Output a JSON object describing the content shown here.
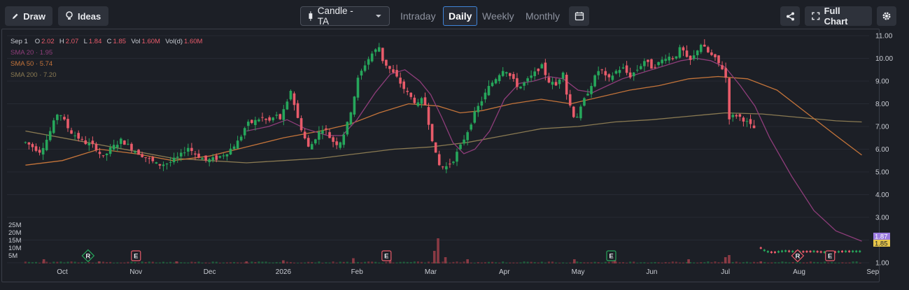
{
  "toolbar": {
    "draw_label": "Draw",
    "ideas_label": "Ideas",
    "chart_type_label": "Candle - TA",
    "tabs": [
      "Intraday",
      "Daily",
      "Weekly",
      "Monthly"
    ],
    "active_tab": "Daily",
    "full_chart_label": "Full Chart"
  },
  "legend": {
    "date": "Sep 1",
    "o_label": "O",
    "o_value": "2.02",
    "h_label": "H",
    "h_value": "2.07",
    "l_label": "L",
    "l_value": "1.84",
    "c_label": "C",
    "c_value": "1.85",
    "vol_label": "Vol",
    "vol_value": "1.60M",
    "vold_label": "Vol(d)",
    "vold_value": "1.60M",
    "sma20": "SMA 20 · 1.95",
    "sma50": "SMA 50 · 5.74",
    "sma200": "SMA 200 · 7.20"
  },
  "colors": {
    "up": "#26a65b",
    "down": "#e85b6a",
    "sma20": "#8e3d7a",
    "sma50": "#c4743a",
    "sma200": "#8a7a52",
    "last_price_bg": "#9b7be0",
    "sma_badge_bg": "#e6c54a"
  },
  "chart_data": {
    "type": "candlestick",
    "y_ticks": [
      "11.00",
      "10.00",
      "9.00",
      "8.00",
      "7.00",
      "6.00",
      "5.00",
      "4.00",
      "3.00",
      "2.00",
      "1.00"
    ],
    "ylim": [
      1,
      11
    ],
    "x_ticks": [
      "Oct",
      "Nov",
      "Dec",
      "2026",
      "Feb",
      "Mar",
      "Apr",
      "May",
      "Jun",
      "Jul",
      "Aug",
      "Sep"
    ],
    "volume_ticks": [
      "25M",
      "20M",
      "15M",
      "10M",
      "5M"
    ],
    "price_badge": "1.87",
    "sma_badge": "1.85",
    "events": [
      {
        "label": "R",
        "type": "dividend",
        "month_index": 0.35
      },
      {
        "label": "E",
        "type": "earnings-neg",
        "month_index": 1.0
      },
      {
        "label": "E",
        "type": "earnings-neg",
        "month_index": 4.4
      },
      {
        "label": "E",
        "type": "earnings-pos",
        "month_index": 7.45
      },
      {
        "label": "R",
        "type": "split",
        "month_index": 9.98
      },
      {
        "label": "E",
        "type": "earnings-neg",
        "month_index": 10.42
      }
    ],
    "price_path": [
      [
        0,
        6.3
      ],
      [
        0.2,
        5.9
      ],
      [
        0.3,
        6.5
      ],
      [
        0.45,
        7.7
      ],
      [
        0.6,
        6.8
      ],
      [
        0.8,
        6.3
      ],
      [
        0.95,
        6.1
      ],
      [
        1.05,
        5.6
      ],
      [
        1.15,
        6.0
      ],
      [
        1.3,
        6.4
      ],
      [
        1.5,
        5.9
      ],
      [
        1.65,
        5.6
      ],
      [
        1.8,
        5.3
      ],
      [
        1.95,
        5.4
      ],
      [
        2.1,
        5.7
      ],
      [
        2.2,
        6.1
      ],
      [
        2.3,
        5.8
      ],
      [
        2.45,
        5.5
      ],
      [
        2.6,
        5.6
      ],
      [
        2.75,
        5.9
      ],
      [
        2.9,
        6.4
      ],
      [
        3.0,
        7.1
      ],
      [
        3.1,
        7.2
      ],
      [
        3.2,
        7.4
      ],
      [
        3.3,
        7.2
      ],
      [
        3.4,
        7.5
      ],
      [
        3.45,
        7.3
      ],
      [
        3.55,
        8.0
      ],
      [
        3.6,
        8.6
      ],
      [
        3.7,
        7.3
      ],
      [
        3.8,
        6.4
      ],
      [
        3.85,
        6.0
      ],
      [
        3.95,
        6.6
      ],
      [
        4.05,
        7.0
      ],
      [
        4.15,
        6.4
      ],
      [
        4.25,
        6.2
      ],
      [
        4.35,
        6.9
      ],
      [
        4.45,
        8.1
      ],
      [
        4.5,
        9.0
      ],
      [
        4.6,
        9.7
      ],
      [
        4.7,
        10.2
      ],
      [
        4.8,
        10.5
      ],
      [
        4.85,
        9.9
      ],
      [
        4.95,
        9.5
      ],
      [
        5.05,
        9.1
      ],
      [
        5.15,
        8.6
      ],
      [
        5.25,
        8.2
      ],
      [
        5.35,
        7.9
      ],
      [
        5.4,
        8.4
      ],
      [
        5.45,
        7.5
      ],
      [
        5.55,
        6.0
      ],
      [
        5.6,
        5.3
      ],
      [
        5.7,
        5.2
      ],
      [
        5.8,
        5.5
      ],
      [
        5.9,
        6.1
      ],
      [
        6.0,
        6.8
      ],
      [
        6.1,
        7.6
      ],
      [
        6.2,
        8.2
      ],
      [
        6.3,
        8.8
      ],
      [
        6.4,
        9.2
      ],
      [
        6.5,
        9.6
      ],
      [
        6.6,
        9.1
      ],
      [
        6.7,
        8.7
      ],
      [
        6.8,
        9.0
      ],
      [
        6.9,
        9.3
      ],
      [
        7.0,
        9.7
      ],
      [
        7.1,
        9.0
      ],
      [
        7.2,
        8.8
      ],
      [
        7.3,
        9.5
      ],
      [
        7.35,
        8.3
      ],
      [
        7.45,
        7.4
      ],
      [
        7.5,
        7.5
      ],
      [
        7.6,
        8.3
      ],
      [
        7.7,
        9.0
      ],
      [
        7.8,
        9.6
      ],
      [
        7.9,
        9.0
      ],
      [
        8.0,
        9.4
      ],
      [
        8.1,
        9.6
      ],
      [
        8.2,
        9.2
      ],
      [
        8.3,
        9.5
      ],
      [
        8.4,
        9.9
      ],
      [
        8.5,
        9.6
      ],
      [
        8.6,
        9.8
      ],
      [
        8.7,
        10.1
      ],
      [
        8.8,
        10.0
      ],
      [
        8.9,
        10.5
      ],
      [
        9.0,
        9.8
      ],
      [
        9.1,
        10.2
      ],
      [
        9.15,
        10.7
      ],
      [
        9.25,
        10.3
      ],
      [
        9.35,
        10.0
      ],
      [
        9.45,
        9.6
      ],
      [
        9.5,
        9.3
      ],
      [
        9.55,
        7.4
      ],
      [
        9.65,
        7.5
      ],
      [
        9.75,
        7.3
      ],
      [
        9.85,
        7.0
      ],
      [
        9.9,
        6.9
      ]
    ],
    "sma20_path": [
      [
        3.0,
        6.8
      ],
      [
        3.3,
        7.0
      ],
      [
        3.55,
        7.3
      ],
      [
        3.8,
        6.9
      ],
      [
        4.1,
        6.6
      ],
      [
        4.3,
        6.6
      ],
      [
        4.5,
        7.3
      ],
      [
        4.75,
        8.5
      ],
      [
        4.95,
        9.3
      ],
      [
        5.15,
        9.5
      ],
      [
        5.35,
        9.0
      ],
      [
        5.5,
        8.4
      ],
      [
        5.65,
        7.4
      ],
      [
        5.8,
        6.3
      ],
      [
        5.95,
        5.8
      ],
      [
        6.1,
        6.0
      ],
      [
        6.3,
        6.8
      ],
      [
        6.5,
        8.2
      ],
      [
        6.7,
        8.9
      ],
      [
        6.9,
        9.0
      ],
      [
        7.1,
        9.2
      ],
      [
        7.3,
        9.1
      ],
      [
        7.5,
        8.6
      ],
      [
        7.7,
        8.5
      ],
      [
        7.9,
        8.8
      ],
      [
        8.1,
        9.1
      ],
      [
        8.3,
        9.3
      ],
      [
        8.5,
        9.5
      ],
      [
        8.7,
        9.7
      ],
      [
        8.9,
        9.9
      ],
      [
        9.1,
        10.0
      ],
      [
        9.3,
        9.9
      ],
      [
        9.5,
        9.6
      ],
      [
        9.7,
        8.8
      ],
      [
        9.9,
        7.9
      ],
      [
        10.1,
        6.5
      ],
      [
        10.4,
        4.8
      ],
      [
        10.7,
        3.3
      ],
      [
        11.0,
        2.4
      ],
      [
        11.35,
        1.95
      ]
    ],
    "sma50_path": [
      [
        0,
        5.3
      ],
      [
        0.5,
        5.5
      ],
      [
        1.0,
        6.0
      ],
      [
        1.5,
        5.8
      ],
      [
        2.0,
        5.5
      ],
      [
        2.5,
        5.7
      ],
      [
        3.0,
        6.1
      ],
      [
        3.5,
        6.5
      ],
      [
        4.0,
        6.8
      ],
      [
        4.4,
        7.1
      ],
      [
        4.8,
        7.6
      ],
      [
        5.2,
        8.0
      ],
      [
        5.6,
        7.9
      ],
      [
        5.9,
        7.6
      ],
      [
        6.2,
        7.7
      ],
      [
        6.6,
        8.0
      ],
      [
        7.0,
        8.2
      ],
      [
        7.4,
        8.0
      ],
      [
        7.8,
        8.3
      ],
      [
        8.2,
        8.6
      ],
      [
        8.6,
        8.8
      ],
      [
        9.0,
        9.1
      ],
      [
        9.4,
        9.2
      ],
      [
        9.8,
        9.1
      ],
      [
        10.2,
        8.6
      ],
      [
        10.6,
        7.6
      ],
      [
        11.0,
        6.6
      ],
      [
        11.35,
        5.74
      ]
    ],
    "sma200_path": [
      [
        0,
        6.8
      ],
      [
        0.5,
        6.5
      ],
      [
        1.0,
        6.2
      ],
      [
        1.5,
        5.9
      ],
      [
        2.0,
        5.6
      ],
      [
        2.5,
        5.5
      ],
      [
        3.0,
        5.4
      ],
      [
        3.5,
        5.5
      ],
      [
        4.0,
        5.6
      ],
      [
        4.5,
        5.8
      ],
      [
        5.0,
        6.0
      ],
      [
        5.5,
        6.1
      ],
      [
        6.0,
        6.3
      ],
      [
        6.5,
        6.6
      ],
      [
        7.0,
        6.9
      ],
      [
        7.5,
        7.0
      ],
      [
        8.0,
        7.2
      ],
      [
        8.5,
        7.3
      ],
      [
        9.0,
        7.45
      ],
      [
        9.5,
        7.6
      ],
      [
        10.0,
        7.55
      ],
      [
        10.5,
        7.4
      ],
      [
        11.0,
        7.25
      ],
      [
        11.35,
        7.2
      ]
    ],
    "post_split_price": [
      [
        9.98,
        1.65
      ],
      [
        10.05,
        1.5
      ],
      [
        10.15,
        1.45
      ],
      [
        10.3,
        1.52
      ],
      [
        10.5,
        1.48
      ],
      [
        10.7,
        1.5
      ],
      [
        10.9,
        1.45
      ],
      [
        11.1,
        1.5
      ],
      [
        11.35,
        1.5
      ]
    ],
    "volume_spikes": [
      [
        0.25,
        2
      ],
      [
        1.0,
        1
      ],
      [
        2.05,
        1
      ],
      [
        3.0,
        1
      ],
      [
        3.5,
        1.5
      ],
      [
        4.45,
        2.5
      ],
      [
        4.95,
        3
      ],
      [
        5.6,
        12
      ],
      [
        5.55,
        6
      ],
      [
        5.7,
        3
      ],
      [
        6.0,
        2
      ],
      [
        7.45,
        2
      ],
      [
        8.0,
        1.5
      ],
      [
        9.0,
        2
      ],
      [
        9.5,
        3
      ],
      [
        9.55,
        4
      ],
      [
        9.98,
        1
      ]
    ]
  }
}
